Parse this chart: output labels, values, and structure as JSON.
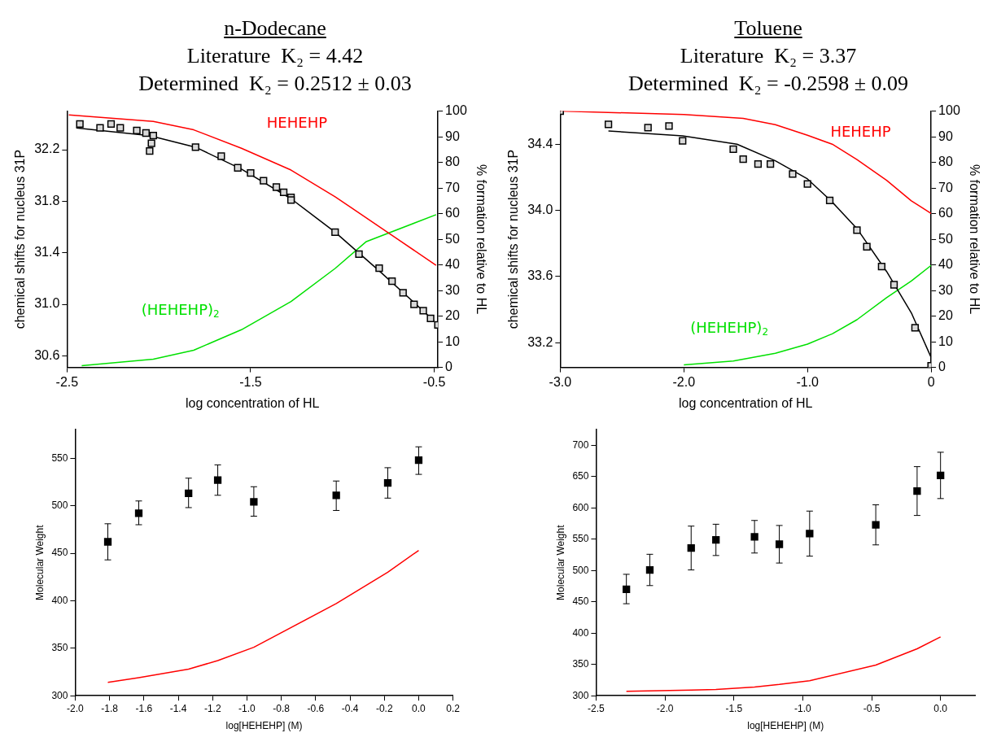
{
  "chart_data": [
    {
      "type": "scatter",
      "title": "n-Dodecane",
      "subtitle": "Literature  K₂ = 4.42",
      "annotations": [
        "Determined  K₂ = 0.2512 ± 0.03"
      ],
      "xlabel": "log concentration of HL",
      "ylabel": "chemical shifts for nucleus 31P",
      "y2label": "% formation relative to HL",
      "xlim": [
        -2.5,
        -0.48
      ],
      "xticks": [
        -2.5,
        -1.5,
        -0.5
      ],
      "ylim": [
        30.51,
        32.5
      ],
      "yticks": [
        {
          "value": 30.6,
          "label": "30.6"
        },
        {
          "value": 31.0,
          "label": "31.0"
        },
        {
          "value": 31.4,
          "label": "31.4"
        },
        {
          "value": 31.8,
          "label": "31.8"
        },
        {
          "value": 32.2,
          "label": "32.2"
        }
      ],
      "y2lim": [
        0,
        100
      ],
      "y2ticks": [
        0,
        10,
        20,
        30,
        40,
        50,
        60,
        70,
        80,
        90,
        100
      ],
      "legend": false,
      "series": [
        {
          "type": "scatter",
          "marker": "square",
          "color": "#d9d9d9",
          "x": [
            -2.43,
            -2.32,
            -2.26,
            -2.21,
            -2.12,
            -2.07,
            -2.03,
            -2.04,
            -2.05,
            -1.8,
            -1.66,
            -1.57,
            -1.5,
            -1.43,
            -1.36,
            -1.32,
            -1.28,
            -1.28,
            -1.04,
            -0.91,
            -0.8,
            -0.73,
            -0.67,
            -0.61,
            -0.56,
            -0.52,
            -0.48
          ],
          "values": [
            32.4,
            32.37,
            32.4,
            32.37,
            32.35,
            32.33,
            32.31,
            32.25,
            32.19,
            32.22,
            32.15,
            32.06,
            32.02,
            31.96,
            31.91,
            31.87,
            31.83,
            31.81,
            31.56,
            31.39,
            31.28,
            31.18,
            31.09,
            31.0,
            30.95,
            30.89,
            30.84
          ]
        },
        {
          "type": "line",
          "marker": "none",
          "color": "#000000",
          "x": [
            -2.45,
            -2.05,
            -1.8,
            -1.55,
            -1.28,
            -1.04,
            -0.8,
            -0.5
          ],
          "values": [
            32.37,
            32.31,
            32.22,
            32.05,
            31.82,
            31.56,
            31.26,
            30.87
          ]
        },
        {
          "type": "line",
          "marker": "none",
          "name": "HEHEHP",
          "axis": "y2",
          "color": "#ff0000",
          "x": [
            -2.49,
            -2.03,
            -1.81,
            -1.55,
            -1.28,
            -1.04,
            -0.7,
            -0.49
          ],
          "values": [
            98.5,
            96.0,
            92.7,
            85.5,
            77.0,
            66.6,
            50.1,
            39.8
          ]
        },
        {
          "type": "line",
          "marker": "none",
          "name": "(HEHEHP)$_{2}$",
          "axis": "y2",
          "color": "#00e000",
          "x": [
            -2.42,
            -2.03,
            -1.81,
            -1.55,
            -1.28,
            -1.04,
            -0.87,
            -0.49
          ],
          "values": [
            0.7,
            3.2,
            6.7,
            14.7,
            25.7,
            38.6,
            49.1,
            59.6
          ]
        }
      ]
    },
    {
      "type": "scatter",
      "title": "Toluene",
      "subtitle": "Literature  K₂ = 3.37",
      "annotations": [
        "Determined  K₂ = -0.2598 ± 0.09"
      ],
      "xlabel": "log concentration of HL",
      "ylabel": "chemical shifts for nucleus 31P",
      "y2label": "% formation relative to HL",
      "xlim": [
        -3,
        0
      ],
      "xticks": [
        {
          "value": -3,
          "label": "-3.0"
        },
        {
          "value": -2,
          "label": "-2.0"
        },
        {
          "value": -1,
          "label": "-1.0"
        },
        0
      ],
      "ylim": [
        33.05,
        34.6
      ],
      "yticks": [
        33.2,
        33.6,
        {
          "value": 34,
          "label": "34.0"
        },
        34.4
      ],
      "y2lim": [
        0,
        100
      ],
      "y2ticks": [
        0,
        10,
        20,
        30,
        40,
        50,
        60,
        70,
        80,
        90,
        100
      ],
      "legend": false,
      "series": [
        {
          "type": "scatter",
          "marker": "square",
          "color": "#d9d9d9",
          "x": [
            -3.0,
            -2.61,
            -2.29,
            -2.12,
            -2.01,
            -1.6,
            -1.52,
            -1.4,
            -1.3,
            -1.12,
            -1.0,
            -0.82,
            -0.6,
            -0.52,
            -0.4,
            -0.3,
            -0.13,
            0.0
          ],
          "values": [
            34.6,
            34.52,
            34.5,
            34.51,
            34.42,
            34.37,
            34.31,
            34.28,
            34.28,
            34.22,
            34.16,
            34.06,
            33.88,
            33.78,
            33.66,
            33.55,
            33.29,
            33.06
          ]
        },
        {
          "type": "line",
          "marker": "none",
          "color": "#000000",
          "x": [
            -2.61,
            -2.01,
            -1.57,
            -1.26,
            -1.0,
            -0.8,
            -0.6,
            -0.36,
            -0.16,
            0.0
          ],
          "values": [
            34.48,
            34.45,
            34.4,
            34.3,
            34.19,
            34.05,
            33.89,
            33.63,
            33.38,
            33.11
          ]
        },
        {
          "type": "line",
          "marker": "none",
          "name": "HEHEHP",
          "axis": "y2",
          "color": "#ff0000",
          "x": [
            -3.0,
            -2.0,
            -1.52,
            -1.26,
            -1.0,
            -0.8,
            -0.6,
            -0.36,
            -0.16,
            0.0
          ],
          "values": [
            100,
            98.7,
            97.2,
            94.7,
            90.6,
            87.1,
            81.1,
            73.0,
            65.0,
            60.1
          ]
        },
        {
          "type": "line",
          "marker": "none",
          "name": "(HEHEHP)$_{2}$",
          "axis": "y2",
          "color": "#00e000",
          "x": [
            -2.0,
            -1.6,
            -1.26,
            -1.0,
            -0.8,
            -0.6,
            -0.36,
            -0.16,
            0.0
          ],
          "values": [
            1.0,
            2.5,
            5.5,
            9.1,
            13.1,
            18.6,
            27.2,
            33.7,
            39.8
          ]
        }
      ]
    },
    {
      "type": "scatter",
      "xlabel": "log[HEHEHP] (M)",
      "ylabel": "Molecular Weight",
      "xlim": [
        -2.0,
        0.2
      ],
      "xticks": [
        {
          "value": -2,
          "label": "-2.0"
        },
        -1.8,
        -1.6,
        -1.4,
        -1.2,
        {
          "value": -1,
          "label": "-1.0"
        },
        -0.8,
        -0.6,
        -0.4,
        -0.2,
        {
          "value": 0,
          "label": "0.0"
        },
        0.2
      ],
      "ylim": [
        300,
        580
      ],
      "yticks": [
        300,
        350,
        400,
        450,
        500,
        550
      ],
      "legend": false,
      "series": [
        {
          "type": "scatter",
          "marker": "square",
          "color": "#000000",
          "x": [
            -1.81,
            -1.63,
            -1.34,
            -1.17,
            -0.96,
            -0.48,
            -0.18,
            0.0
          ],
          "values": [
            462,
            492,
            513,
            527,
            504,
            511,
            524,
            548
          ],
          "errors": [
            [
              443,
              481
            ],
            [
              480,
              505
            ],
            [
              498,
              529
            ],
            [
              511,
              543
            ],
            [
              489,
              520
            ],
            [
              495,
              526
            ],
            [
              508,
              540
            ],
            [
              533,
              562
            ]
          ]
        },
        {
          "type": "line",
          "marker": "none",
          "color": "#ff0000",
          "x": [
            -1.81,
            -1.63,
            -1.34,
            -1.17,
            -0.96,
            -0.48,
            -0.18,
            0.0
          ],
          "values": [
            314,
            319,
            328,
            337,
            351,
            397,
            430,
            453
          ]
        }
      ]
    },
    {
      "type": "scatter",
      "xlabel": "log[HEHEHP] (M)",
      "ylabel": "Molecular Weight",
      "xlim": [
        -2.5,
        0.25
      ],
      "xticks": [
        -2.5,
        {
          "value": -2,
          "label": "-2.0"
        },
        -1.5,
        {
          "value": -1,
          "label": "-1.0"
        },
        -0.5,
        {
          "value": 0,
          "label": "0.0"
        }
      ],
      "ylim": [
        300,
        725
      ],
      "yticks": [
        300,
        350,
        400,
        450,
        500,
        550,
        600,
        650,
        700
      ],
      "legend": false,
      "series": [
        {
          "type": "scatter",
          "marker": "square",
          "color": "#000000",
          "x": [
            -2.28,
            -2.11,
            -1.81,
            -1.63,
            -1.35,
            -1.17,
            -0.95,
            -0.47,
            -0.17,
            0.0
          ],
          "values": [
            470,
            501,
            536,
            549,
            554,
            542,
            559,
            573,
            627,
            652
          ],
          "errors": [
            [
              447,
              494
            ],
            [
              476,
              526
            ],
            [
              501,
              571
            ],
            [
              524,
              574
            ],
            [
              528,
              580
            ],
            [
              512,
              572
            ],
            [
              523,
              595
            ],
            [
              541,
              605
            ],
            [
              588,
              666
            ],
            [
              615,
              689
            ]
          ]
        },
        {
          "type": "line",
          "marker": "none",
          "color": "#ff0000",
          "x": [
            -2.28,
            -1.81,
            -1.63,
            -1.35,
            -1.17,
            -0.95,
            -0.47,
            -0.17,
            0.0
          ],
          "values": [
            307,
            309,
            310,
            314,
            318,
            324,
            349,
            375,
            394
          ]
        }
      ]
    }
  ]
}
